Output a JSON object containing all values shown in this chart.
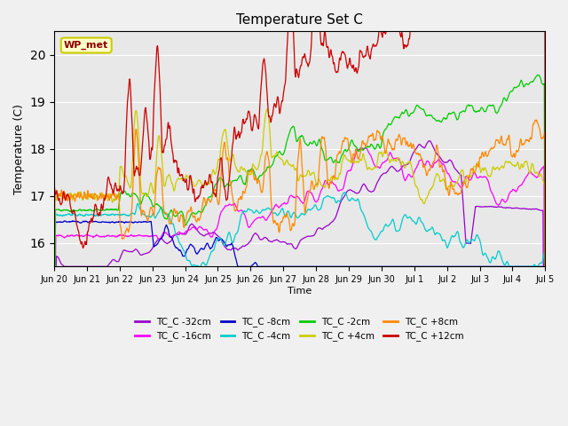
{
  "title": "Temperature Set C",
  "xlabel": "Time",
  "ylabel": "Temperature (C)",
  "ylim": [
    15.5,
    20.5
  ],
  "annotation": "WP_met",
  "series": [
    {
      "label": "TC_C -32cm",
      "color": "#9900cc"
    },
    {
      "label": "TC_C -16cm",
      "color": "#ff00ff"
    },
    {
      "label": "TC_C -8cm",
      "color": "#0000cc"
    },
    {
      "label": "TC_C -4cm",
      "color": "#00cccc"
    },
    {
      "label": "TC_C -2cm",
      "color": "#00cc00"
    },
    {
      "label": "TC_C +4cm",
      "color": "#cccc00"
    },
    {
      "label": "TC_C +8cm",
      "color": "#ff8800"
    },
    {
      "label": "TC_C +12cm",
      "color": "#cc0000"
    }
  ],
  "bg_color": "#e8e8e8",
  "grid_color": "#ffffff",
  "tick_labels": [
    "Jun 20",
    "Jun 21",
    "Jun 22",
    "Jun 23",
    "Jun 24",
    "Jun 25",
    "Jun 26",
    "Jun 27",
    "Jun 28",
    "Jun 29",
    "Jun 30",
    "Jul 1",
    "Jul 2",
    "Jul 3",
    "Jul 4",
    "Jul 5"
  ]
}
